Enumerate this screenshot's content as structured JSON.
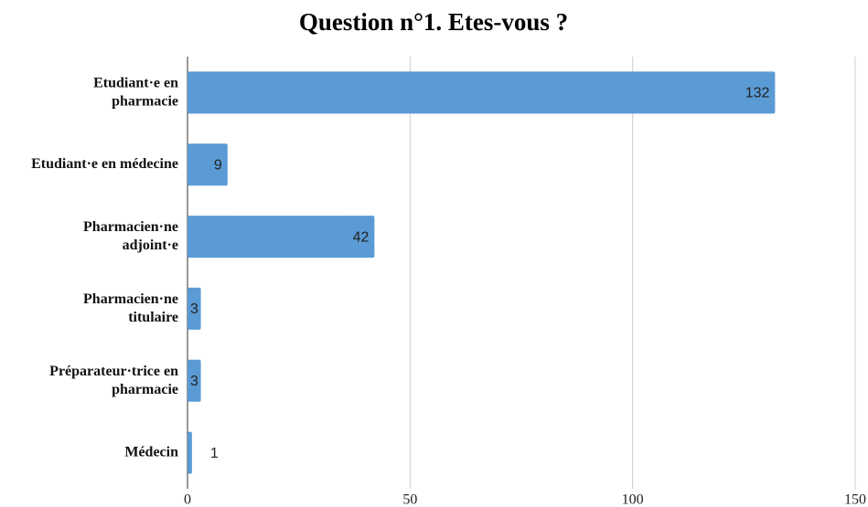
{
  "chart_data": {
    "type": "hbar",
    "title": "Question n°1. Etes-vous ?",
    "categories": [
      "Etudiant·e en pharmacie",
      "Etudiant·e en médecine",
      "Pharmacien·ne adjoint·e",
      "Pharmacien·ne titulaire",
      "Préparateur·trice en pharmacie",
      "Médecin"
    ],
    "values": [
      132,
      9,
      42,
      3,
      3,
      1
    ],
    "color": "#5b9bd5",
    "xlim": [
      0,
      150
    ],
    "xticks": [
      0,
      50,
      100,
      150
    ],
    "grid": true
  }
}
